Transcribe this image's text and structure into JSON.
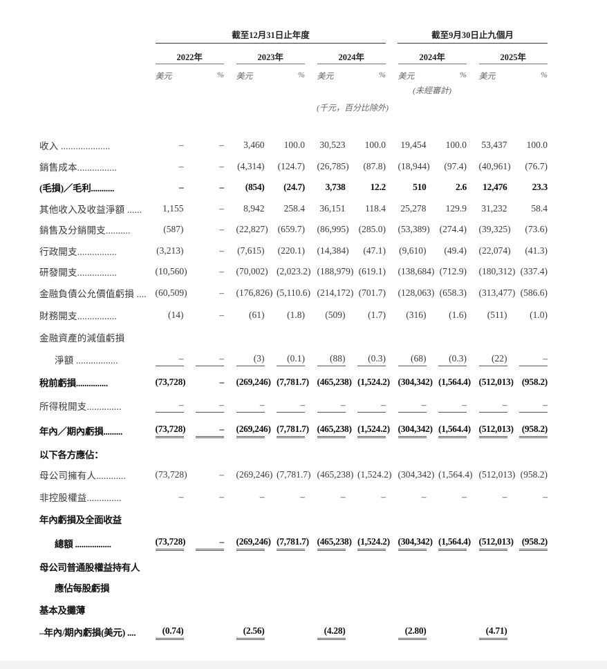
{
  "header": {
    "group_year": "截至12月31日止年度",
    "group_nine_months": "截至9月30日止九個月",
    "years": [
      "2022年",
      "2023年",
      "2024年",
      "2024年",
      "2025年"
    ],
    "unit_usd": "美元",
    "unit_pct": "%",
    "unaudited": "(未經審計)",
    "thousands_note": "(千元，百分比除外)"
  },
  "rows": [
    {
      "label": "收入 ....................",
      "style": "",
      "values": [
        "–",
        "–",
        "3,460",
        "100.0",
        "30,523",
        "100.0",
        "19,454",
        "100.0",
        "53,437",
        "100.0"
      ]
    },
    {
      "label": "銷售成本................",
      "style": "",
      "values": [
        "–",
        "–",
        "(4,314)",
        "(124.7)",
        "(26,785)",
        "(87.8)",
        "(18,944)",
        "(97.4)",
        "(40,961)",
        "(76.7)"
      ]
    },
    {
      "label": "(毛損)／毛利...........",
      "style": "bold",
      "values": [
        "–",
        "–",
        "(854)",
        "(24.7)",
        "3,738",
        "12.2",
        "510",
        "2.6",
        "12,476",
        "23.3"
      ]
    },
    {
      "label": "其他收入及收益淨額 ......",
      "style": "",
      "values": [
        "1,155",
        "–",
        "8,942",
        "258.4",
        "36,151",
        "118.4",
        "25,278",
        "129.9",
        "31,232",
        "58.4"
      ]
    },
    {
      "label": "銷售及分銷開支..........",
      "style": "",
      "values": [
        "(587)",
        "–",
        "(22,827)",
        "(659.7)",
        "(86,995)",
        "(285.0)",
        "(53,389)",
        "(274.4)",
        "(39,325)",
        "(73.6)"
      ]
    },
    {
      "label": "行政開支................",
      "style": "",
      "values": [
        "(3,213)",
        "–",
        "(7,615)",
        "(220.1)",
        "(14,384)",
        "(47.1)",
        "(9,610)",
        "(49.4)",
        "(22,074)",
        "(41.3)"
      ]
    },
    {
      "label": "研發開支................",
      "style": "",
      "values": [
        "(10,560)",
        "–",
        "(70,002)",
        "(2,023.2)",
        "(188,979)",
        "(619.1)",
        "(138,684)",
        "(712.9)",
        "(180,312)",
        "(337.4)"
      ]
    },
    {
      "label": "金融負債公允價值虧損 ....",
      "style": "",
      "values": [
        "(60,509)",
        "–",
        "(176,826)",
        "(5,110.6)",
        "(214,172)",
        "(701.7)",
        "(128,063)",
        "(658.3)",
        "(313,477)",
        "(586.6)"
      ]
    },
    {
      "label": "財務開支................",
      "style": "",
      "values": [
        "(14)",
        "–",
        "(61)",
        "(1.8)",
        "(509)",
        "(1.7)",
        "(316)",
        "(1.6)",
        "(511)",
        "(1.0)"
      ],
      "height": "t34"
    },
    {
      "label": "金融資產的減值虧損",
      "style": "",
      "values": []
    },
    {
      "label": "淨額 .................",
      "style": "indent",
      "underline": "single",
      "values": [
        "–",
        "–",
        "(3)",
        "(0.1)",
        "(88)",
        "(0.3)",
        "(68)",
        "(0.3)",
        "(22)",
        "–"
      ],
      "height": "t34"
    },
    {
      "label": "稅前虧損...............",
      "style": "bold",
      "values": [
        "(73,728)",
        "–",
        "(269,246)",
        "(7,781.7)",
        "(465,238)",
        "(1,524.2)",
        "(304,342)",
        "(1,564.4)",
        "(512,013)",
        "(958.2)"
      ],
      "height": "t34"
    },
    {
      "label": "所得稅開支..............",
      "style": "",
      "underline": "single",
      "values": [
        "–",
        "–",
        "–",
        "–",
        "–",
        "–",
        "–",
        "–",
        "–",
        "–"
      ],
      "height": "t34"
    },
    {
      "label": "年內／期內虧損.........",
      "style": "bold",
      "underline": "double",
      "values": [
        "(73,728)",
        "–",
        "(269,246)",
        "(7,781.7)",
        "(465,238)",
        "(1,524.2)",
        "(304,342)",
        "(1,564.4)",
        "(512,013)",
        "(958.2)"
      ],
      "height": "t40"
    },
    {
      "label": "以下各方應佔：",
      "style": "bold",
      "values": []
    },
    {
      "label": "母公司擁有人............",
      "style": "",
      "values": [
        "(73,728)",
        "–",
        "(269,246)",
        "(7,781.7)",
        "(465,238)",
        "(1,524.2)",
        "(304,342)",
        "(1,564.4)",
        "(512,013)",
        "(958.2)"
      ]
    },
    {
      "label": "非控股權益..............",
      "style": "",
      "values": [
        "–",
        "–",
        "–",
        "–",
        "–",
        "–",
        "–",
        "–",
        "–",
        "–"
      ],
      "height": "t34"
    },
    {
      "label": "年內虧損及全面收益",
      "style": "bold",
      "values": []
    },
    {
      "label": "總額 .................",
      "style": "bold indent",
      "underline": "double",
      "values": [
        "(73,728)",
        "–",
        "(269,246)",
        "(7,781.7)",
        "(465,238)",
        "(1,524.2)",
        "(304,342)",
        "(1,564.4)",
        "(512,013)",
        "(958.2)"
      ],
      "height": "t40"
    },
    {
      "label": "母公司普通股權益持有人",
      "style": "bold",
      "values": []
    },
    {
      "label": "應佔每股虧損",
      "style": "bold indent",
      "values": []
    },
    {
      "label": "基本及攤薄",
      "style": "bold",
      "values": [],
      "height": "t34"
    },
    {
      "label": "–年內/期內虧損(美元) ....",
      "style": "bold",
      "underline": "double",
      "values": [
        "(0.74)",
        "",
        "(2.56)",
        "",
        "(4.28)",
        "",
        "(2.80)",
        "",
        "(4.71)",
        ""
      ]
    }
  ]
}
